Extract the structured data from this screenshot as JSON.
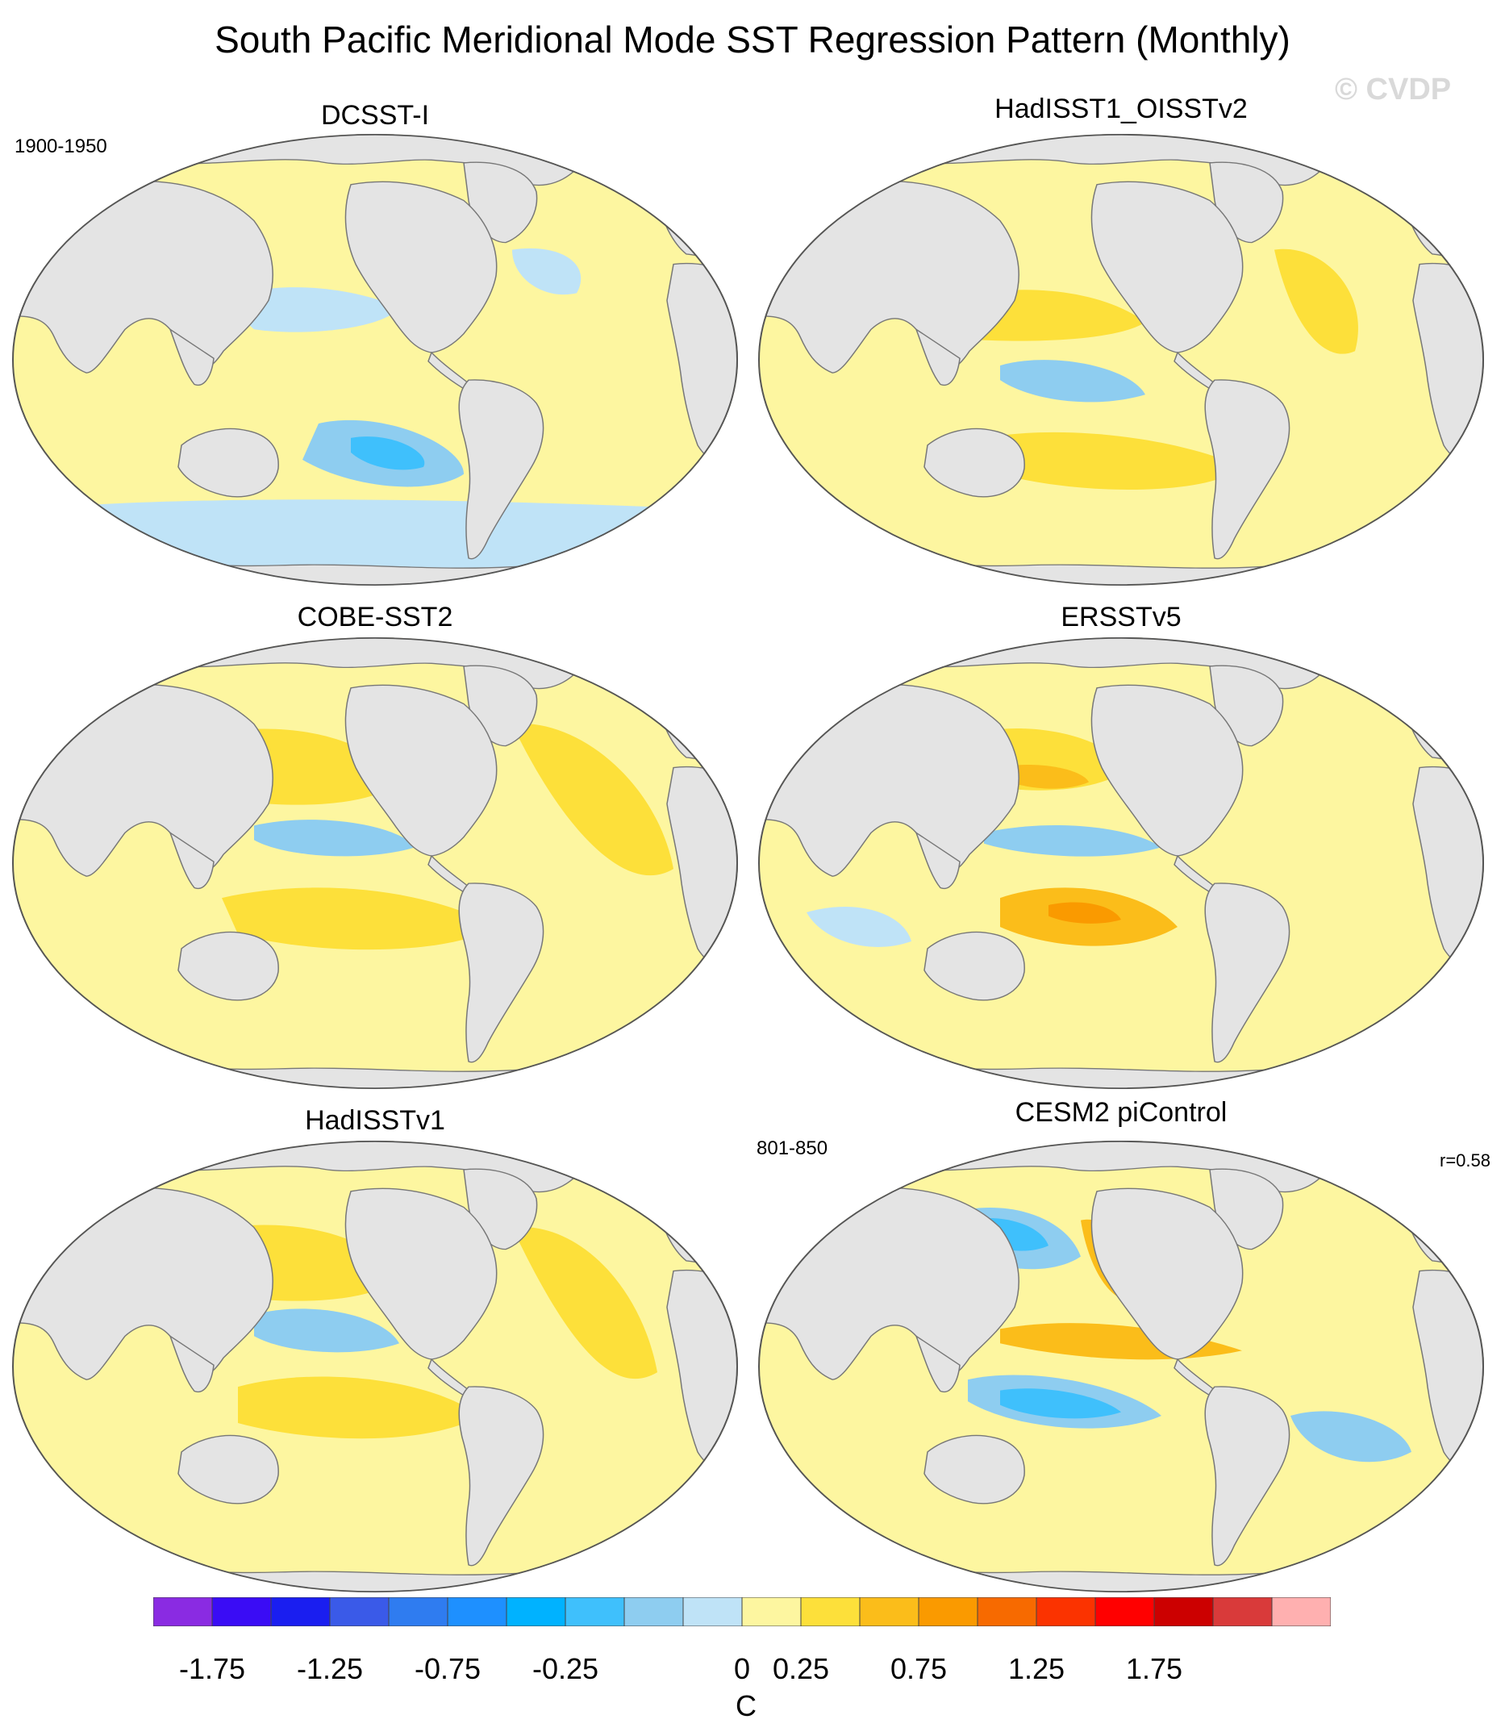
{
  "figure": {
    "title": "South Pacific Meridional Mode SST Regression Pattern (Monthly)",
    "watermark": "© CVDP"
  },
  "panels": [
    {
      "title": "DCSST-I",
      "period": "1900-1950",
      "corr": ""
    },
    {
      "title": "HadISST1_OISSTv2",
      "period": "",
      "corr": ""
    },
    {
      "title": "COBE-SST2",
      "period": "",
      "corr": ""
    },
    {
      "title": "ERSSTv5",
      "period": "",
      "corr": ""
    },
    {
      "title": "HadISSTv1",
      "period": "",
      "corr": ""
    },
    {
      "title": "CESM2 piControl",
      "period": "801-850",
      "corr": "r=0.58"
    }
  ],
  "colorbar": {
    "units": "C",
    "labels": [
      "-1.75",
      "-1.25",
      "-0.75",
      "-0.25",
      "0",
      "0.25",
      "0.75",
      "1.25",
      "1.75"
    ],
    "label_edges": [
      1,
      3,
      5,
      7,
      10,
      11,
      13,
      15,
      17
    ],
    "colors": [
      "#8a2be2",
      "#3a0cf5",
      "#1a1ef0",
      "#3a5ae8",
      "#2f7cf0",
      "#1e90ff",
      "#00b2ff",
      "#3fc0fc",
      "#8ecdf0",
      "#bfe3f7",
      "#fdf6a0",
      "#fde03a",
      "#fbbd1a",
      "#fa9a00",
      "#f76a00",
      "#fb3300",
      "#ff0000",
      "#cc0000",
      "#d93a3a",
      "#ffb0b0"
    ]
  }
}
